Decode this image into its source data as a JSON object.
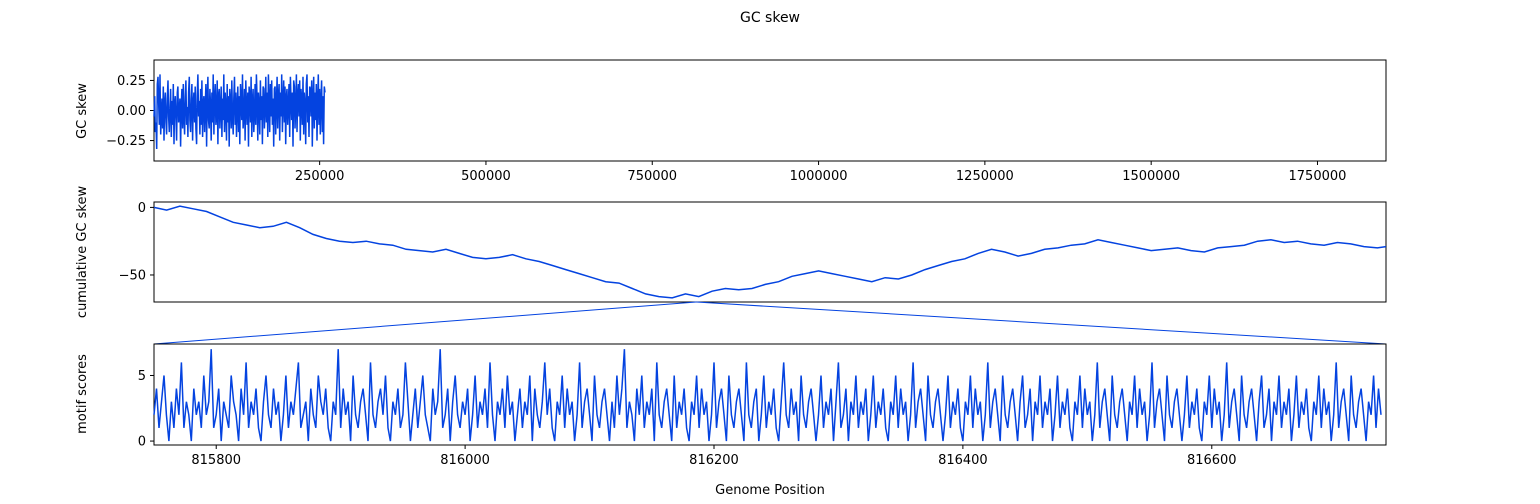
{
  "chart_data": [
    {
      "type": "line",
      "title": "GC skew",
      "ylabel": "GC skew",
      "xlabel": "",
      "xlim": [
        1000,
        1853000
      ],
      "ylim": [
        -0.42,
        0.42
      ],
      "xticks": [
        250000,
        500000,
        750000,
        1000000,
        1250000,
        1500000,
        1750000
      ],
      "yticks": [
        -0.25,
        0.0,
        0.25
      ],
      "ytick_labels": [
        "−0.25",
        "0.00",
        "0.25"
      ],
      "xtick_labels": [
        "250000",
        "500000",
        "750000",
        "1000000",
        "1250000",
        "1500000",
        "1750000"
      ],
      "series_color": "#0443e0",
      "series": [
        {
          "x_start": 1000,
          "x_step": 1000,
          "values": [
            -0.05,
            0.12,
            -0.18,
            -0.1,
            -0.32,
            0.22,
            0.28,
            0.05,
            -0.12,
            0.3,
            -0.2,
            -0.05,
            0.1,
            -0.15,
            0.2,
            -0.25,
            0.05,
            0.15,
            -0.1,
            -0.2,
            0.1,
            0.25,
            -0.05,
            -0.18,
            0.02,
            0.18,
            -0.22,
            0.08,
            -0.12,
            0.22,
            -0.28,
            0.05,
            0.12,
            -0.08,
            -0.25,
            0.15,
            0.2,
            -0.1,
            -0.02,
            0.1,
            -0.3,
            0.05,
            0.18,
            -0.15,
            0.22,
            -0.05,
            -0.2,
            0.12,
            0.25,
            -0.12,
            0.03,
            -0.22,
            0.15,
            0.28,
            -0.08,
            -0.18,
            0.1,
            0.22,
            -0.25,
            0.05,
            0.15,
            -0.1,
            0.2,
            -0.15,
            -0.28,
            0.12,
            0.3,
            -0.05,
            0.08,
            -0.2,
            0.18,
            -0.12,
            0.25,
            -0.22,
            0.05,
            0.12,
            -0.18,
            0.02,
            0.22,
            -0.3,
            0.1,
            0.28,
            -0.08,
            -0.15,
            0.18,
            0.05,
            -0.25,
            0.15,
            -0.1,
            0.3,
            -0.2,
            0.08,
            0.22,
            -0.12,
            -0.05,
            0.25,
            -0.28,
            0.12,
            0.18,
            -0.15,
            0.02,
            0.2,
            -0.22,
            0.1,
            -0.08,
            0.3,
            -0.18,
            0.15,
            0.05,
            -0.25,
            0.22,
            -0.1,
            0.12,
            -0.3,
            0.18,
            0.08,
            -0.15,
            0.25,
            -0.05,
            -0.2,
            0.1,
            0.28,
            -0.12,
            0.15,
            -0.22,
            0.05,
            0.2,
            -0.18,
            0.12,
            -0.28,
            0.22,
            0.1,
            -0.08,
            0.3,
            -0.15,
            -0.05,
            0.18,
            -0.25,
            0.25,
            0.02,
            -0.12,
            0.15,
            -0.3,
            0.2,
            0.12,
            -0.1,
            0.28,
            -0.22,
            0.08,
            0.18,
            -0.18,
            -0.05,
            0.22,
            -0.12,
            0.3,
            0.1,
            -0.25,
            0.15,
            0.05,
            -0.2,
            0.25,
            -0.08,
            0.12,
            -0.28,
            0.2,
            0.18,
            -0.15,
            0.02,
            0.28,
            -0.1,
            0.15,
            -0.22,
            0.3,
            0.08,
            -0.18,
            0.22,
            -0.05,
            0.25,
            -0.12,
            0.1,
            -0.3,
            0.18,
            0.2,
            -0.2,
            0.05,
            0.28,
            -0.15,
            0.12,
            0.22,
            -0.25,
            0.15,
            -0.05,
            0.3,
            -0.18,
            0.08,
            0.25,
            -0.1,
            0.2,
            -0.28,
            0.12,
            0.18,
            -0.12,
            0.05,
            0.22,
            -0.22,
            0.28,
            0.1,
            -0.08,
            0.15,
            -0.3,
            0.25,
            0.2,
            -0.15,
            0.02,
            0.3,
            -0.18,
            0.12,
            0.22,
            -0.05,
            0.25,
            -0.25,
            0.18,
            0.08,
            -0.12,
            0.28,
            -0.2,
            0.15,
            0.05,
            -0.28,
            0.22,
            0.3,
            -0.1,
            0.12,
            -0.22,
            0.2,
            0.18,
            -0.05,
            0.25,
            -0.3,
            0.1,
            0.28,
            -0.15,
            0.15,
            -0.08,
            0.22,
            -0.25,
            0.05,
            0.3,
            -0.12,
            0.18,
            -0.2,
            0.1,
            0.25,
            -0.18,
            0.12,
            -0.28,
            0.2,
            0.15
          ]
        }
      ]
    },
    {
      "type": "line",
      "title": "",
      "ylabel": "cumulative GC skew",
      "xlabel": "",
      "xlim": [
        1000,
        1853000
      ],
      "ylim": [
        -70,
        4
      ],
      "yticks": [
        0,
        -50
      ],
      "ytick_labels": [
        "0",
        "−50"
      ],
      "series_color": "#0443e0",
      "series": [
        {
          "x": [
            1000,
            20000,
            40000,
            60000,
            80000,
            100000,
            120000,
            140000,
            160000,
            180000,
            200000,
            220000,
            240000,
            260000,
            280000,
            300000,
            320000,
            340000,
            360000,
            380000,
            400000,
            420000,
            440000,
            460000,
            480000,
            500000,
            520000,
            540000,
            560000,
            580000,
            600000,
            620000,
            640000,
            660000,
            680000,
            700000,
            720000,
            740000,
            760000,
            780000,
            800000,
            820000,
            840000,
            860000,
            880000,
            900000,
            920000,
            940000,
            960000,
            980000,
            1000000,
            1020000,
            1040000,
            1060000,
            1080000,
            1100000,
            1120000,
            1140000,
            1160000,
            1180000,
            1200000,
            1220000,
            1240000,
            1260000,
            1280000,
            1300000,
            1320000,
            1340000,
            1360000,
            1380000,
            1400000,
            1420000,
            1440000,
            1460000,
            1480000,
            1500000,
            1520000,
            1540000,
            1560000,
            1580000,
            1600000,
            1620000,
            1640000,
            1660000,
            1680000,
            1700000,
            1720000,
            1740000,
            1760000,
            1780000,
            1800000,
            1820000,
            1840000,
            1853000
          ],
          "values": [
            0,
            -2,
            1,
            -1,
            -3,
            -7,
            -11,
            -13,
            -15,
            -14,
            -11,
            -15,
            -20,
            -23,
            -25,
            -26,
            -25,
            -27,
            -28,
            -31,
            -32,
            -33,
            -31,
            -34,
            -37,
            -38,
            -37,
            -35,
            -38,
            -40,
            -43,
            -46,
            -49,
            -52,
            -55,
            -56,
            -60,
            -64,
            -66,
            -67,
            -64,
            -66,
            -62,
            -60,
            -61,
            -60,
            -57,
            -55,
            -51,
            -49,
            -47,
            -49,
            -51,
            -53,
            -55,
            -52,
            -53,
            -50,
            -46,
            -43,
            -40,
            -38,
            -34,
            -31,
            -33,
            -36,
            -34,
            -31,
            -30,
            -28,
            -27,
            -24,
            -26,
            -28,
            -30,
            -32,
            -31,
            -30,
            -32,
            -33,
            -30,
            -29,
            -28,
            -25,
            -24,
            -26,
            -25,
            -27,
            -28,
            -26,
            -27,
            -29,
            -30,
            -29
          ]
        }
      ]
    },
    {
      "type": "line",
      "title": "",
      "ylabel": "motif scores",
      "xlabel": "Genome Position",
      "xlim": [
        815750,
        816740
      ],
      "ylim": [
        -0.3,
        7.4
      ],
      "xticks": [
        815800,
        816000,
        816200,
        816400,
        816600
      ],
      "xtick_labels": [
        "815800",
        "816000",
        "816200",
        "816400",
        "816600"
      ],
      "yticks": [
        0,
        5
      ],
      "ytick_labels": [
        "0",
        "5"
      ],
      "series_color": "#0443e0",
      "series": [
        {
          "x_start": 815750,
          "x_step": 2,
          "values": [
            2,
            4,
            1,
            3,
            5,
            2,
            0,
            3,
            1,
            4,
            2,
            6,
            1,
            3,
            2,
            0,
            4,
            2,
            3,
            1,
            5,
            2,
            3,
            7,
            1,
            2,
            4,
            0,
            3,
            2,
            1,
            5,
            3,
            2,
            0,
            4,
            2,
            6,
            1,
            3,
            2,
            4,
            1,
            0,
            3,
            5,
            2,
            1,
            4,
            2,
            3,
            0,
            2,
            5,
            1,
            3,
            2,
            4,
            6,
            1,
            2,
            3,
            0,
            4,
            2,
            1,
            5,
            3,
            2,
            4,
            1,
            0,
            3,
            2,
            7,
            1,
            4,
            2,
            3,
            0,
            5,
            2,
            1,
            3,
            4,
            2,
            0,
            6,
            2,
            1,
            3,
            4,
            2,
            5,
            1,
            0,
            3,
            2,
            4,
            1,
            2,
            6,
            3,
            0,
            2,
            4,
            1,
            3,
            5,
            2,
            1,
            0,
            4,
            2,
            3,
            7,
            1,
            2,
            4,
            0,
            3,
            5,
            2,
            1,
            3,
            2,
            4,
            0,
            2,
            5,
            1,
            3,
            2,
            4,
            1,
            6,
            2,
            0,
            3,
            2,
            4,
            1,
            5,
            2,
            3,
            0,
            2,
            4,
            1,
            3,
            2,
            5,
            0,
            4,
            2,
            1,
            3,
            6,
            2,
            4,
            1,
            0,
            3,
            2,
            5,
            1,
            4,
            2,
            3,
            0,
            2,
            6,
            1,
            3,
            4,
            2,
            0,
            5,
            2,
            1,
            3,
            4,
            2,
            0,
            3,
            1,
            5,
            2,
            4,
            7,
            1,
            3,
            2,
            0,
            4,
            2,
            5,
            1,
            3,
            2,
            4,
            0,
            6,
            2,
            1,
            3,
            4,
            2,
            0,
            5,
            1,
            3,
            2,
            4,
            1,
            0,
            3,
            2,
            5,
            1,
            4,
            2,
            3,
            0,
            2,
            6,
            1,
            3,
            4,
            2,
            0,
            5,
            2,
            1,
            3,
            4,
            2,
            0,
            6,
            2,
            1,
            3,
            4,
            0,
            2,
            5,
            1,
            3,
            2,
            4,
            1,
            0,
            3,
            6,
            2,
            1,
            4,
            2,
            3,
            0,
            5,
            2,
            1,
            3,
            4,
            2,
            0,
            2,
            5,
            1,
            3,
            2,
            4,
            0,
            3,
            6,
            1,
            2,
            4,
            0,
            3,
            2,
            5,
            1,
            3,
            2,
            4,
            0,
            2,
            5,
            1,
            3,
            2,
            4,
            1,
            0,
            3,
            2,
            5,
            1,
            4,
            2,
            3,
            0,
            2,
            6,
            1,
            3,
            4,
            2,
            0,
            5,
            2,
            1,
            3,
            4,
            2,
            0,
            2,
            5,
            1,
            3,
            2,
            4,
            1,
            0,
            3,
            2,
            5,
            1,
            4,
            2,
            3,
            0,
            2,
            6,
            1,
            3,
            4,
            2,
            0,
            5,
            2,
            1,
            3,
            4,
            2,
            0,
            3,
            5,
            1,
            2,
            4,
            0,
            3,
            2,
            5,
            1,
            3,
            2,
            4,
            0,
            2,
            5,
            1,
            3,
            2,
            4,
            1,
            0,
            3,
            2,
            5,
            1,
            4,
            2,
            3,
            0,
            2,
            6,
            1,
            3,
            4,
            2,
            0,
            5,
            2,
            1,
            3,
            4,
            2,
            0,
            3,
            2,
            5,
            1,
            4,
            2,
            3,
            0,
            2,
            6,
            1,
            3,
            4,
            2,
            0,
            5,
            2,
            1,
            3,
            4,
            2,
            0,
            2,
            5,
            1,
            3,
            2,
            4,
            1,
            0,
            3,
            2,
            5,
            1,
            4,
            2,
            3,
            0,
            2,
            6,
            1,
            3,
            4,
            2,
            0,
            5,
            2,
            1,
            3,
            4,
            2,
            0,
            3,
            5,
            1,
            2,
            4,
            0,
            3,
            2,
            5,
            1,
            3,
            2,
            4,
            0,
            2,
            5,
            1,
            3,
            2,
            4,
            1,
            0,
            3,
            2,
            5,
            1,
            4,
            2,
            3,
            0,
            2,
            6,
            1,
            3,
            4,
            2,
            0,
            5,
            2,
            1,
            3,
            4,
            2,
            0,
            3,
            2,
            5,
            1,
            4,
            2
          ]
        }
      ]
    }
  ],
  "zoom_marker": {
    "source_x": 816200,
    "source_y": -70
  }
}
